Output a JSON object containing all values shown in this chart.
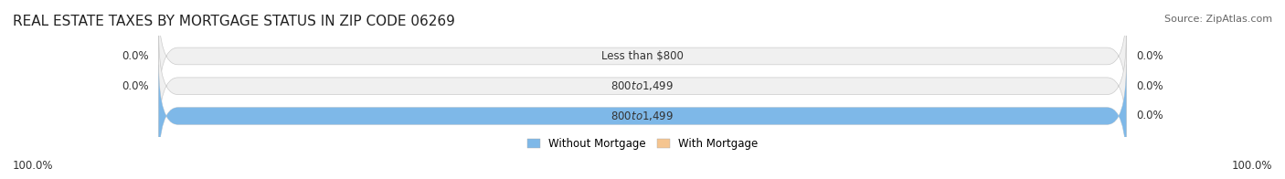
{
  "title": "REAL ESTATE TAXES BY MORTGAGE STATUS IN ZIP CODE 06269",
  "source": "Source: ZipAtlas.com",
  "bars": [
    {
      "label": "Less than $800",
      "without_mortgage": 0.0,
      "with_mortgage": 0.0
    },
    {
      "label": "$800 to $1,499",
      "without_mortgage": 0.0,
      "with_mortgage": 0.0
    },
    {
      "label": "$800 to $1,499",
      "without_mortgage": 100.0,
      "with_mortgage": 0.0
    }
  ],
  "color_without": "#7EB8E8",
  "color_with": "#F5C590",
  "color_bar_bg": "#F0F0F0",
  "bar_height": 0.55,
  "xlim": [
    0,
    100
  ],
  "legend_without": "Without Mortgage",
  "legend_with": "With Mortgage",
  "left_label": "100.0%",
  "right_label": "100.0%",
  "title_fontsize": 11,
  "source_fontsize": 8,
  "label_fontsize": 8.5,
  "axis_label_fontsize": 8.5
}
